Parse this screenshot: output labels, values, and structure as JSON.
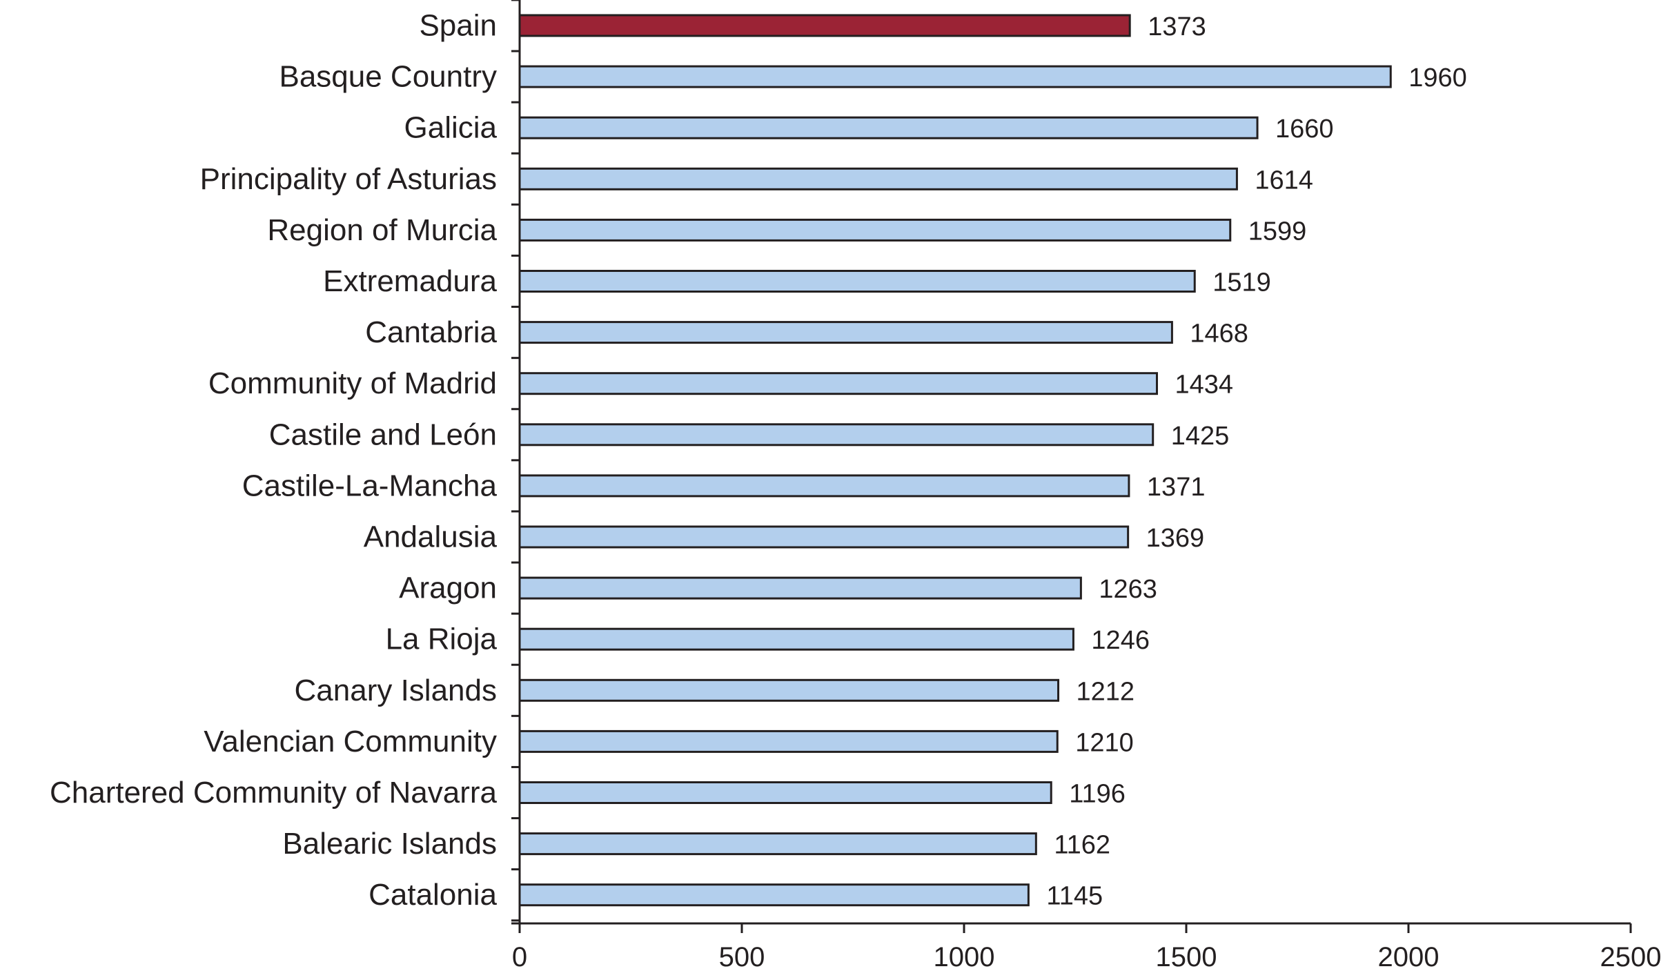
{
  "chart_data": {
    "type": "bar",
    "orientation": "horizontal",
    "title": "",
    "xlabel": "",
    "ylabel": "",
    "xlim": [
      0,
      2500
    ],
    "x_ticks": [
      0,
      500,
      1000,
      1500,
      2000,
      2500
    ],
    "grid": false,
    "legend": "none",
    "categories": [
      "Spain",
      "Basque Country",
      "Galicia",
      "Principality of Asturias",
      "Region of Murcia",
      "Extremadura",
      "Cantabria",
      "Community of Madrid",
      "Castile and León",
      "Castile-La-Mancha",
      "Andalusia",
      "Aragon",
      "La Rioja",
      "Canary Islands",
      "Valencian Community",
      "Chartered Community of Navarra",
      "Balearic Islands",
      "Catalonia"
    ],
    "values": [
      1373,
      1960,
      1660,
      1614,
      1599,
      1519,
      1468,
      1434,
      1425,
      1371,
      1369,
      1263,
      1246,
      1212,
      1210,
      1196,
      1162,
      1145
    ],
    "highlight_category": "Spain",
    "colors": {
      "highlight": "#9b2335",
      "default": "#b3cfed",
      "outline": "#231f20"
    }
  }
}
